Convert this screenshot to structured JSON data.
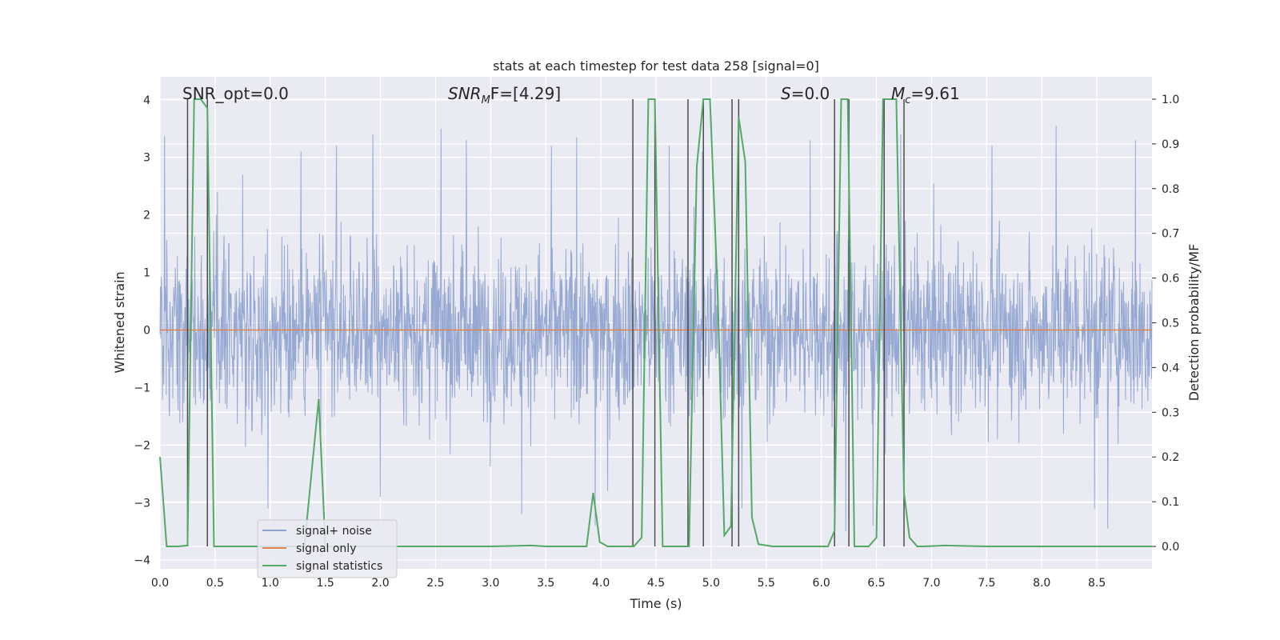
{
  "chart_data": {
    "type": "line",
    "title": "stats at each timestep for test data 258 [signal=0]",
    "xlabel": "Time (s)",
    "ylabel_left": "Whitened strain",
    "ylabel_right": "Detection probability/MF",
    "xlim": [
      0,
      9.0
    ],
    "ylim_left": [
      -4.15,
      4.4
    ],
    "ylim_right": [
      -0.05,
      1.05
    ],
    "x_ticks": [
      "0.0",
      "0.5",
      "1.0",
      "1.5",
      "2.0",
      "2.5",
      "3.0",
      "3.5",
      "4.0",
      "4.5",
      "5.0",
      "5.5",
      "6.0",
      "6.5",
      "7.0",
      "7.5",
      "8.0",
      "8.5"
    ],
    "y_left_ticks": [
      "4",
      "3",
      "2",
      "1",
      "0",
      "−1",
      "−2",
      "−3",
      "−4"
    ],
    "y_right_ticks": [
      "1.0",
      "0.9",
      "0.8",
      "0.7",
      "0.6",
      "0.5",
      "0.4",
      "0.3",
      "0.2",
      "0.1",
      "0.0"
    ],
    "grid": true,
    "legend_position": "lower-left",
    "annotations": {
      "snr_opt": "SNR_opt=0.0",
      "snr_mf_sym": "SNR",
      "snr_mf_sub": "M",
      "snr_mf_rest": "F=[4.29]",
      "s_sym": "S",
      "s_rest": "=0.0",
      "mc_sym": "M",
      "mc_sub": "c",
      "mc_rest": "=9.61"
    },
    "series": [
      {
        "name": "signal+ noise",
        "color": "#8ea2cf",
        "description_of_values": "whitened strain noise, amplitude mostly within [-2.5, 3.4]",
        "peak_samples": [
          [
            0.04,
            3.37
          ],
          [
            0.25,
            3.3
          ],
          [
            0.43,
            -2.3
          ],
          [
            0.52,
            2.4
          ],
          [
            0.75,
            2.7
          ],
          [
            0.98,
            -3.1
          ],
          [
            1.28,
            3.1
          ],
          [
            1.6,
            3.2
          ],
          [
            1.93,
            3.4
          ],
          [
            2.0,
            -2.9
          ],
          [
            2.55,
            3.5
          ],
          [
            2.78,
            3.3
          ],
          [
            3.28,
            -3.2
          ],
          [
            3.55,
            3.2
          ],
          [
            3.78,
            3.35
          ],
          [
            3.95,
            -3.4
          ],
          [
            4.06,
            -2.8
          ],
          [
            4.62,
            3.2
          ],
          [
            4.92,
            3.1
          ],
          [
            5.28,
            -3.1
          ],
          [
            5.9,
            3.3
          ],
          [
            6.22,
            -3.5
          ],
          [
            6.47,
            -3.4
          ],
          [
            6.72,
            3.4
          ],
          [
            7.55,
            3.2
          ],
          [
            8.13,
            3.55
          ],
          [
            8.48,
            -3.1
          ],
          [
            8.6,
            -3.45
          ],
          [
            8.85,
            3.3
          ]
        ]
      },
      {
        "name": "signal only",
        "color": "#dd8452",
        "x": [
          0.0,
          9.0
        ],
        "y": [
          0.0,
          0.0
        ]
      },
      {
        "name": "signal statistics",
        "color": "#55a868",
        "axis": "right",
        "x": [
          0.0,
          0.06,
          0.16,
          0.25,
          0.31,
          0.37,
          0.43,
          0.49,
          0.56,
          1.0,
          1.31,
          1.44,
          1.5,
          1.56,
          2.0,
          3.0,
          3.37,
          3.5,
          3.87,
          3.93,
          3.99,
          4.06,
          4.3,
          4.37,
          4.43,
          4.49,
          4.56,
          4.62,
          4.8,
          4.87,
          4.93,
          4.99,
          5.06,
          5.12,
          5.18,
          5.25,
          5.31,
          5.37,
          5.43,
          5.56,
          6.06,
          6.12,
          6.18,
          6.24,
          6.3,
          6.37,
          6.43,
          6.5,
          6.56,
          6.62,
          6.68,
          6.75,
          6.8,
          6.87,
          6.93,
          7.12,
          7.5,
          8.5,
          9.0
        ],
        "y": [
          0.2,
          0.0,
          0.0,
          0.002,
          1.0,
          1.0,
          0.98,
          0.0,
          0.0,
          0.0,
          0.0,
          0.33,
          0.0,
          0.0,
          0.0,
          0.0,
          0.002,
          0.0,
          0.0,
          0.12,
          0.01,
          0.0,
          0.0,
          0.02,
          1.0,
          1.0,
          0.0,
          0.0,
          0.0,
          0.85,
          1.0,
          1.0,
          0.56,
          0.025,
          0.045,
          0.96,
          0.86,
          0.065,
          0.005,
          0.0,
          0.0,
          0.035,
          1.0,
          1.0,
          0.0,
          0.0,
          0.0,
          0.02,
          1.0,
          1.0,
          1.0,
          0.12,
          0.02,
          0.0,
          0.0,
          0.002,
          0.0,
          0.0,
          0.0
        ]
      }
    ],
    "vertical_markers_x": [
      0.25,
      0.43,
      4.29,
      4.49,
      4.79,
      4.93,
      5.19,
      5.25,
      6.12,
      6.25,
      6.57,
      6.75
    ]
  },
  "colors": {
    "plot_bg": "#eaeaf2",
    "grid": "#ffffff",
    "noise": "#8ea2cf",
    "signal_only": "#dd8452",
    "stats": "#55a868",
    "marker": "#4c4c4c"
  }
}
